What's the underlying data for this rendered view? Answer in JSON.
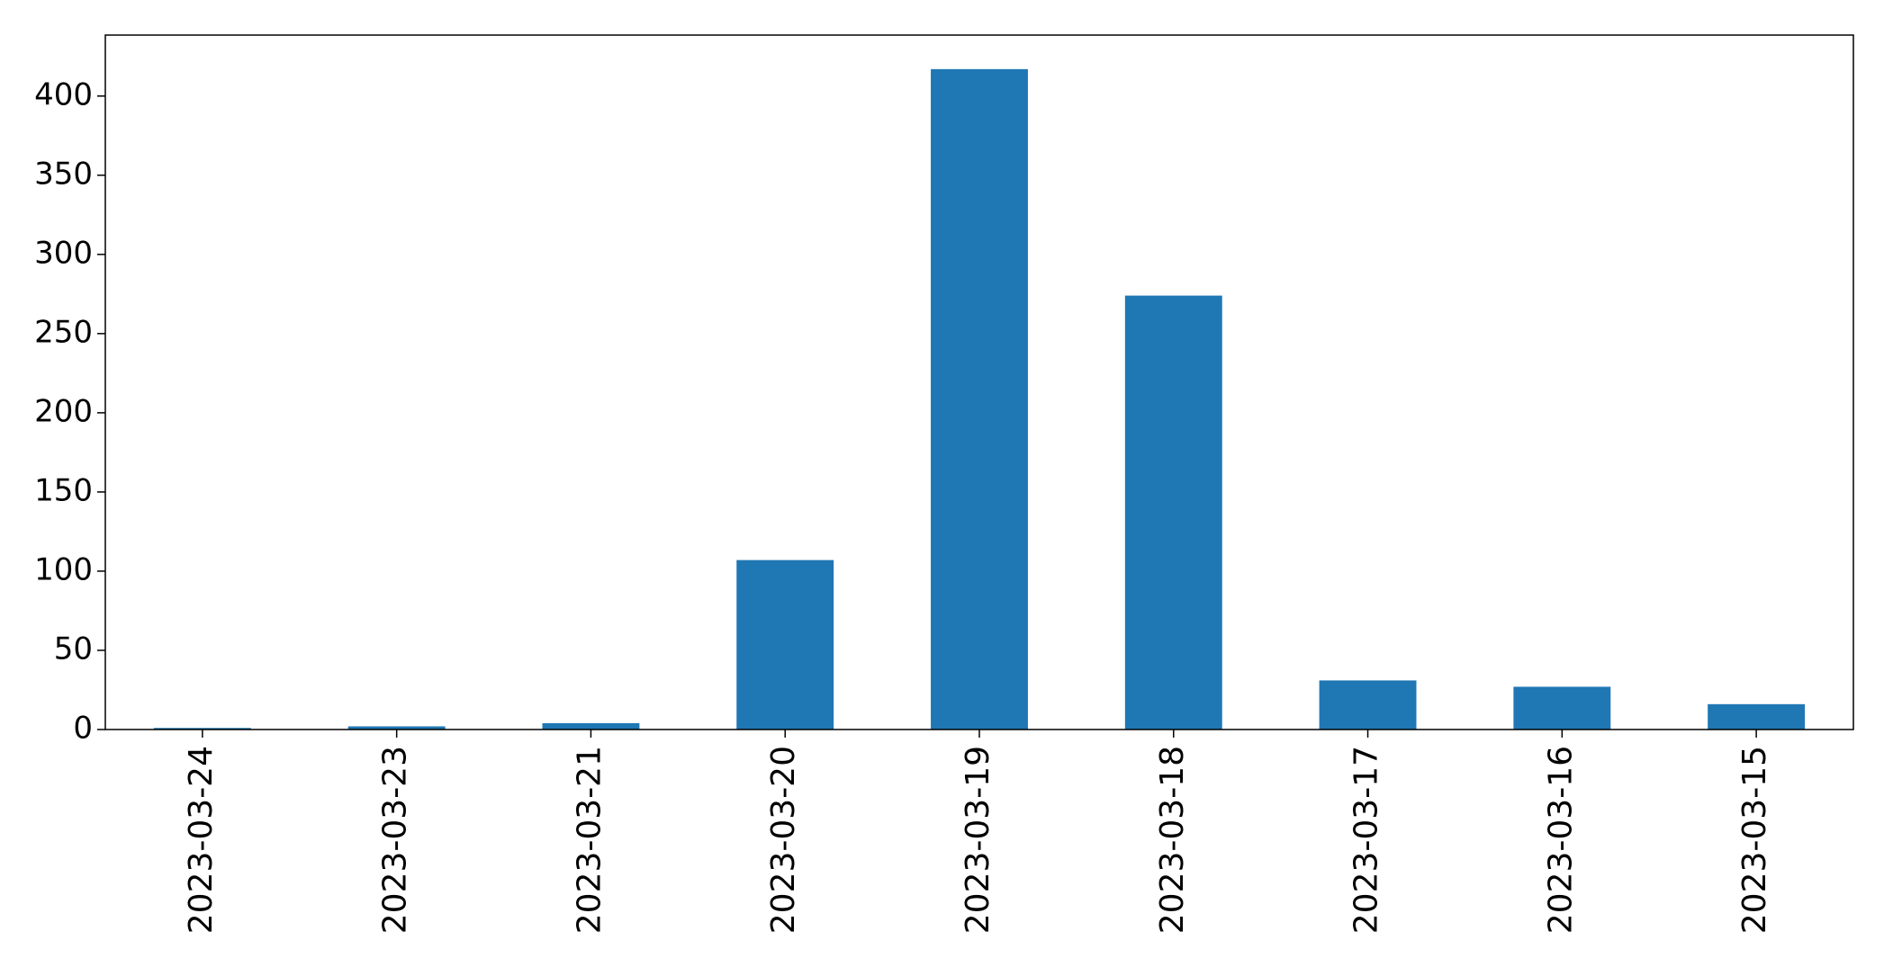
{
  "chart_data": {
    "type": "bar",
    "categories": [
      "2023-03-24",
      "2023-03-23",
      "2023-03-21",
      "2023-03-20",
      "2023-03-19",
      "2023-03-18",
      "2023-03-17",
      "2023-03-16",
      "2023-03-15"
    ],
    "values": [
      1,
      2,
      4,
      107,
      417,
      274,
      31,
      27,
      16
    ],
    "title": "",
    "xlabel": "",
    "ylabel": "",
    "ylim": [
      0,
      438.5
    ],
    "yticks": [
      "0",
      "50",
      "100",
      "150",
      "200",
      "250",
      "300",
      "350",
      "400"
    ],
    "bar_color": "#1f77b4",
    "grid": false,
    "legend": "none",
    "xtick_rotation": "vertical"
  }
}
